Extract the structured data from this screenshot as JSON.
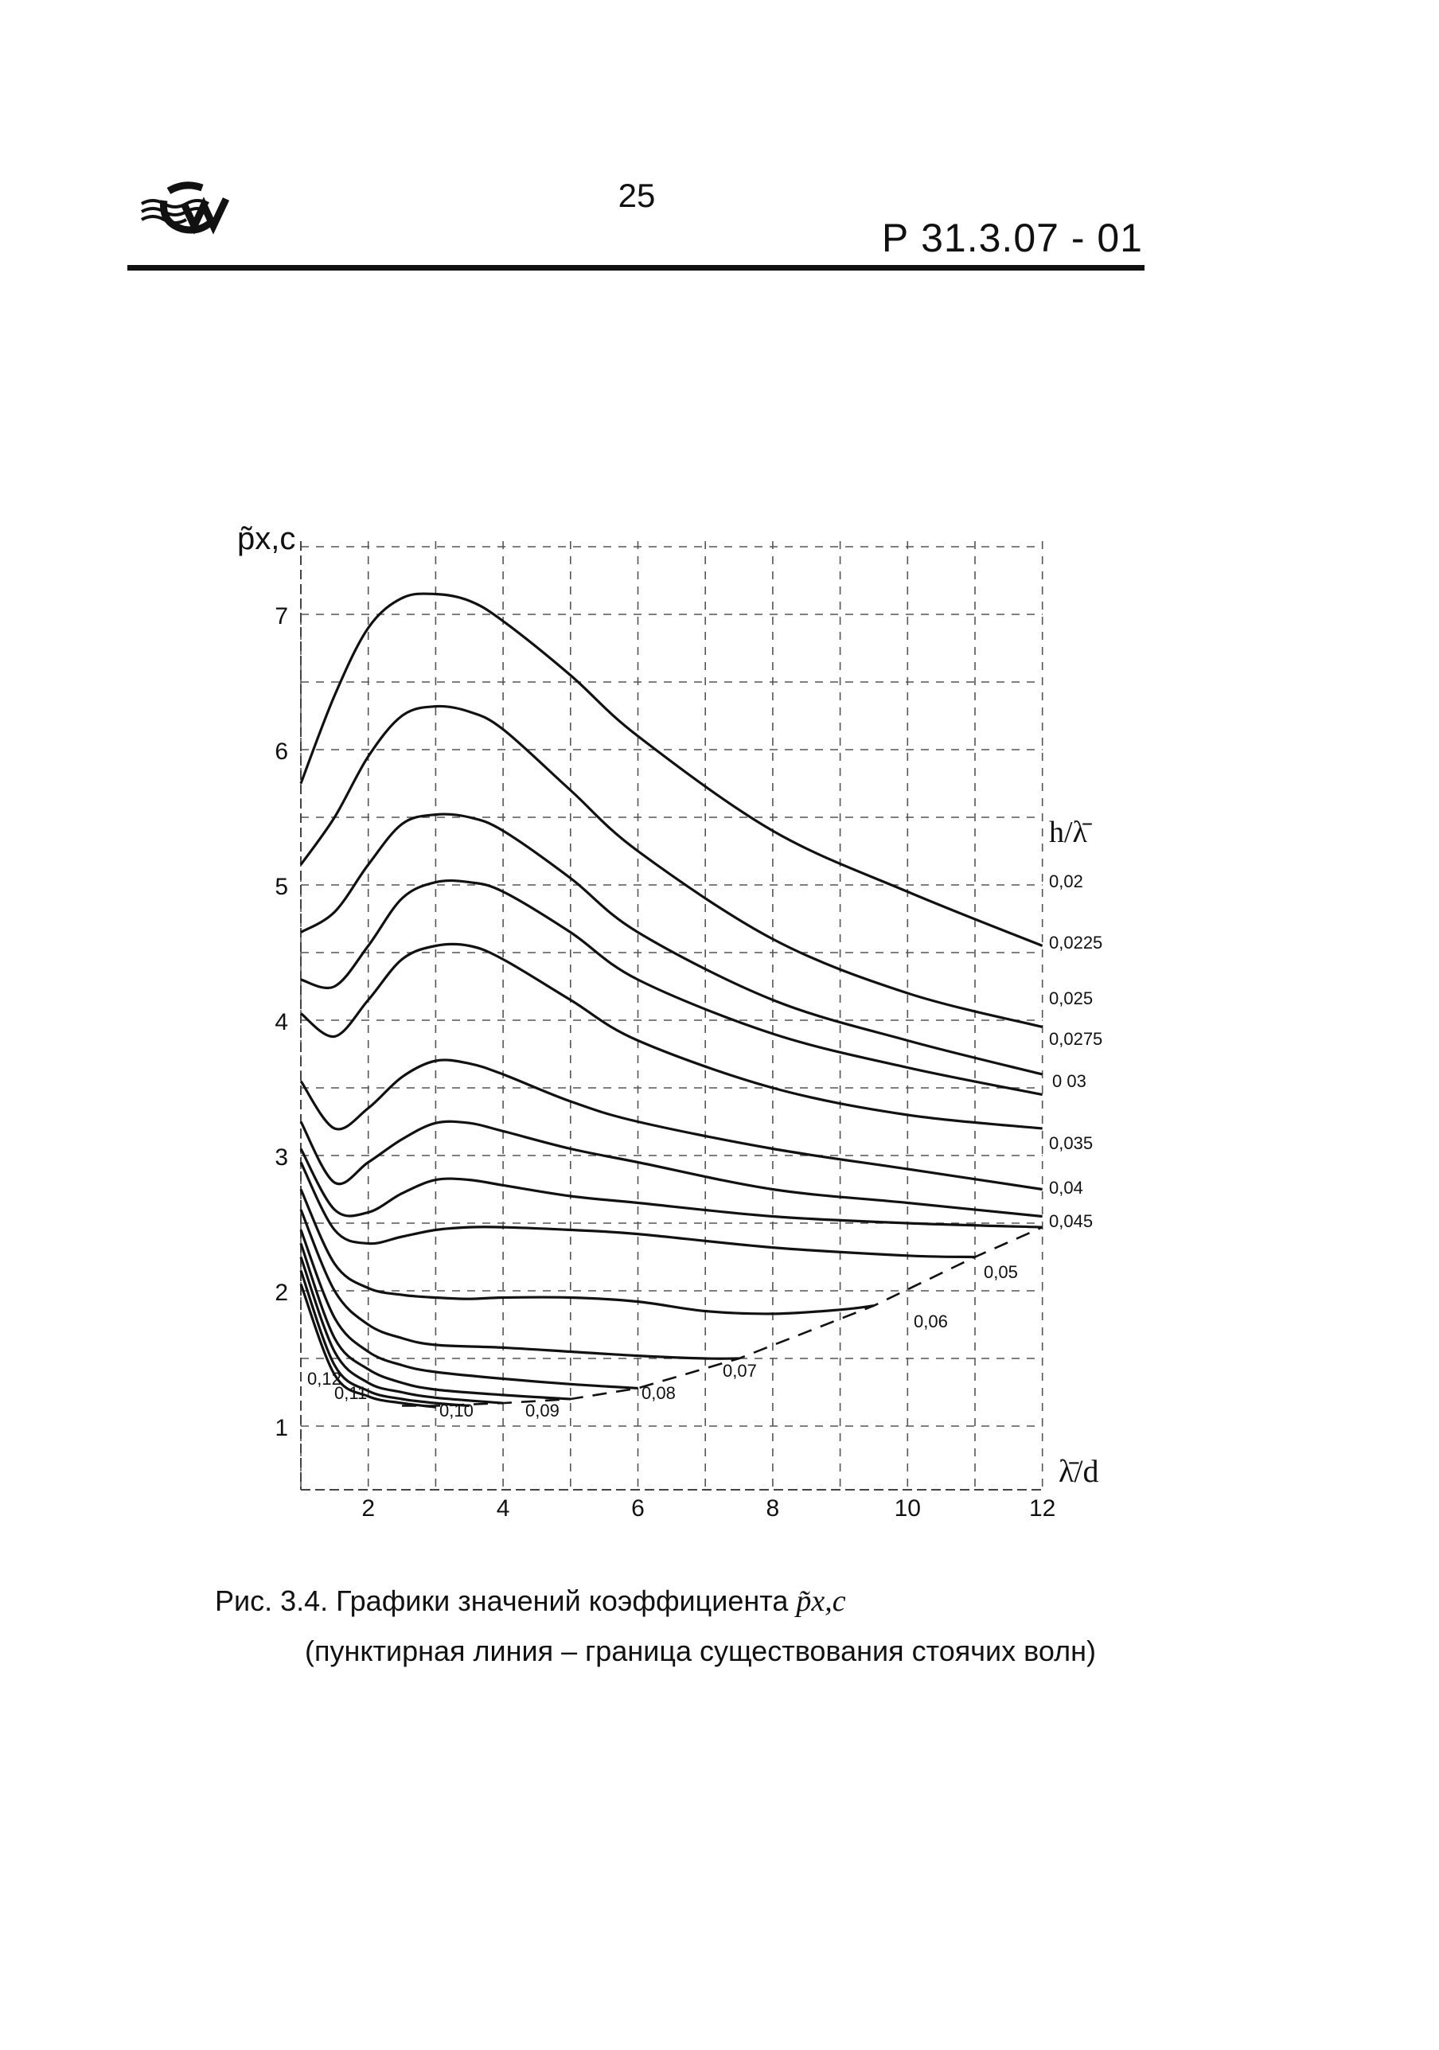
{
  "header": {
    "page_number": "25",
    "document_code": "Р 31.3.07 - 01"
  },
  "chart_data": {
    "type": "line",
    "title": "",
    "ylabel": "p̃x,c",
    "xlabel": "λ̄/d",
    "xlim": [
      1,
      12
    ],
    "ylim": [
      0.8,
      7.5
    ],
    "x_ticks": [
      "2",
      "4",
      "6",
      "8",
      "10",
      "12"
    ],
    "y_ticks": [
      "1",
      "2",
      "3",
      "4",
      "5",
      "6",
      "7"
    ],
    "legend_title": "h/λ̄",
    "grid": "dashed",
    "series": [
      {
        "name": "0,02",
        "x": [
          1,
          1.5,
          2,
          2.5,
          3,
          3.5,
          4,
          5,
          6,
          8,
          10,
          12
        ],
        "y": [
          5.75,
          6.4,
          6.9,
          7.12,
          7.15,
          7.1,
          6.95,
          6.55,
          6.1,
          5.4,
          4.95,
          4.55
        ]
      },
      {
        "name": "0,0225",
        "x": [
          1,
          1.5,
          2,
          2.5,
          3,
          3.5,
          4,
          5,
          6,
          8,
          10,
          12
        ],
        "y": [
          5.15,
          5.5,
          5.95,
          6.25,
          6.32,
          6.28,
          6.15,
          5.7,
          5.25,
          4.6,
          4.2,
          3.95
        ]
      },
      {
        "name": "0,025",
        "x": [
          1,
          1.5,
          2,
          2.5,
          3,
          3.5,
          4,
          5,
          6,
          8,
          10,
          12
        ],
        "y": [
          4.65,
          4.8,
          5.15,
          5.45,
          5.52,
          5.5,
          5.4,
          5.05,
          4.65,
          4.15,
          3.85,
          3.6
        ]
      },
      {
        "name": "0,0275",
        "x": [
          1,
          1.5,
          2,
          2.5,
          3,
          3.5,
          4,
          5,
          6,
          8,
          10,
          12
        ],
        "y": [
          4.3,
          4.25,
          4.55,
          4.9,
          5.02,
          5.02,
          4.95,
          4.65,
          4.3,
          3.9,
          3.65,
          3.45
        ]
      },
      {
        "name": "0 03",
        "x": [
          1,
          1.5,
          2,
          2.5,
          3,
          3.5,
          4,
          5,
          6,
          8,
          10,
          12
        ],
        "y": [
          4.05,
          3.88,
          4.15,
          4.45,
          4.55,
          4.55,
          4.45,
          4.15,
          3.85,
          3.5,
          3.3,
          3.2
        ]
      },
      {
        "name": "0,035",
        "x": [
          1,
          1.5,
          2,
          2.5,
          3,
          3.5,
          4,
          5,
          6,
          8,
          10,
          12
        ],
        "y": [
          3.55,
          3.2,
          3.35,
          3.58,
          3.7,
          3.68,
          3.6,
          3.4,
          3.25,
          3.05,
          2.9,
          2.75
        ]
      },
      {
        "name": "0,04",
        "x": [
          1,
          1.5,
          2,
          2.5,
          3,
          3.5,
          4,
          5,
          6,
          8,
          10,
          12
        ],
        "y": [
          3.25,
          2.8,
          2.95,
          3.12,
          3.24,
          3.24,
          3.18,
          3.05,
          2.95,
          2.75,
          2.65,
          2.55
        ]
      },
      {
        "name": "0,045",
        "x": [
          1,
          1.5,
          2,
          2.5,
          3,
          3.5,
          4,
          5,
          6,
          8,
          10,
          12
        ],
        "y": [
          3.05,
          2.6,
          2.58,
          2.72,
          2.82,
          2.82,
          2.78,
          2.7,
          2.65,
          2.55,
          2.5,
          2.47
        ]
      },
      {
        "name": "0,05",
        "x": [
          1,
          1.5,
          2,
          2.5,
          3,
          3.5,
          4,
          5,
          6,
          8,
          10,
          11
        ],
        "y": [
          2.95,
          2.45,
          2.35,
          2.4,
          2.45,
          2.47,
          2.47,
          2.45,
          2.42,
          2.32,
          2.26,
          2.25
        ]
      },
      {
        "name": "0,06",
        "x": [
          1,
          1.5,
          2,
          2.5,
          3,
          3.5,
          4,
          5,
          6,
          7,
          8,
          9,
          9.5
        ],
        "y": [
          2.75,
          2.2,
          2.02,
          1.97,
          1.95,
          1.94,
          1.95,
          1.95,
          1.92,
          1.85,
          1.83,
          1.86,
          1.89
        ]
      },
      {
        "name": "0,07",
        "x": [
          1,
          1.5,
          2,
          2.5,
          3,
          4,
          5,
          6,
          7,
          7.5
        ],
        "y": [
          2.6,
          2.0,
          1.75,
          1.65,
          1.6,
          1.58,
          1.55,
          1.52,
          1.5,
          1.5
        ]
      },
      {
        "name": "0,08",
        "x": [
          1,
          1.5,
          2,
          2.5,
          3,
          4,
          5,
          6
        ],
        "y": [
          2.45,
          1.8,
          1.55,
          1.45,
          1.4,
          1.35,
          1.31,
          1.28
        ]
      },
      {
        "name": "0,09",
        "x": [
          1,
          1.5,
          2,
          2.5,
          3,
          4,
          5
        ],
        "y": [
          2.35,
          1.65,
          1.42,
          1.32,
          1.27,
          1.23,
          1.2
        ]
      },
      {
        "name": "0,10",
        "x": [
          1,
          1.5,
          2,
          2.5,
          3,
          4
        ],
        "y": [
          2.25,
          1.55,
          1.32,
          1.25,
          1.21,
          1.17
        ]
      },
      {
        "name": "0,11",
        "x": [
          1,
          1.5,
          2,
          2.5,
          3,
          3.5
        ],
        "y": [
          2.15,
          1.45,
          1.26,
          1.2,
          1.17,
          1.15
        ]
      },
      {
        "name": "0,12",
        "x": [
          1,
          1.5,
          2,
          2.5,
          3
        ],
        "y": [
          2.05,
          1.38,
          1.22,
          1.17,
          1.14
        ]
      }
    ],
    "boundary": {
      "style": "dashed",
      "x": [
        2.5,
        3,
        4,
        5,
        6,
        7.5,
        9.5,
        11,
        12
      ],
      "y": [
        1.15,
        1.15,
        1.17,
        1.2,
        1.28,
        1.5,
        1.89,
        2.25,
        2.47
      ]
    }
  },
  "caption": {
    "line1_text": "Рис. 3.4. Графики значений коэффициента",
    "line1_symbol": "p̃x,c",
    "line2_text": "(пунктирная линия – граница существования стоячих волн)"
  }
}
